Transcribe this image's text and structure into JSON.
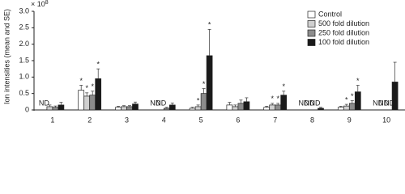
{
  "chart_data": {
    "type": "bar",
    "y_label": "Ion intensities (mean and SE)",
    "y_multiplier": "× 10",
    "y_multiplier_exponent": "8",
    "categories": [
      "1",
      "2",
      "3",
      "4",
      "5",
      "6",
      "7",
      "8",
      "9",
      "10"
    ],
    "ylim": [
      0,
      3.0
    ],
    "yticks": [
      0,
      0.5,
      {
        "value": 1.0,
        "label": "1.0"
      },
      1.5,
      {
        "value": 2.0,
        "label": "2.0"
      },
      2.5,
      {
        "value": 3.0,
        "label": "3.0"
      }
    ],
    "legend_position": "upper right",
    "series": [
      {
        "name": "Control",
        "color": "#ffffff",
        "values": [
          null,
          0.6,
          0.08,
          null,
          0.05,
          0.15,
          0.08,
          null,
          0.08,
          null
        ],
        "errors": [
          null,
          0.15,
          0.03,
          null,
          0.03,
          0.08,
          0.03,
          null,
          0.03,
          null
        ],
        "markers": [
          "ND",
          "*",
          null,
          "ND",
          null,
          null,
          null,
          "ND",
          null,
          "ND"
        ]
      },
      {
        "name": "500 fold dilution",
        "color": "#d0d0d0",
        "values": [
          0.1,
          0.42,
          0.1,
          null,
          0.1,
          0.1,
          0.15,
          null,
          0.12,
          null
        ],
        "errors": [
          0.05,
          0.1,
          0.03,
          null,
          0.05,
          0.05,
          0.05,
          null,
          0.05,
          null
        ],
        "markers": [
          null,
          "*",
          null,
          "ND",
          "*",
          null,
          "*",
          "ND",
          "*",
          "ND"
        ]
      },
      {
        "name": "250 fold dilution",
        "color": "#8c8c8c",
        "values": [
          0.08,
          0.45,
          0.1,
          0.05,
          0.5,
          0.2,
          0.15,
          null,
          0.2,
          null
        ],
        "errors": [
          0.04,
          0.12,
          0.03,
          0.03,
          0.15,
          0.1,
          0.05,
          null,
          0.08,
          null
        ],
        "markers": [
          null,
          "*",
          null,
          null,
          "*",
          null,
          "*",
          "ND",
          "*",
          "ND"
        ]
      },
      {
        "name": "100 fold dilution",
        "color": "#1a1a1a",
        "values": [
          0.15,
          0.95,
          0.18,
          0.15,
          1.65,
          0.25,
          0.45,
          0.05,
          0.55,
          0.85
        ],
        "errors": [
          0.08,
          0.3,
          0.06,
          0.06,
          0.8,
          0.12,
          0.12,
          0.03,
          0.2,
          0.6
        ],
        "markers": [
          null,
          "*",
          null,
          null,
          "*",
          null,
          "*",
          null,
          "*",
          null
        ]
      }
    ]
  }
}
